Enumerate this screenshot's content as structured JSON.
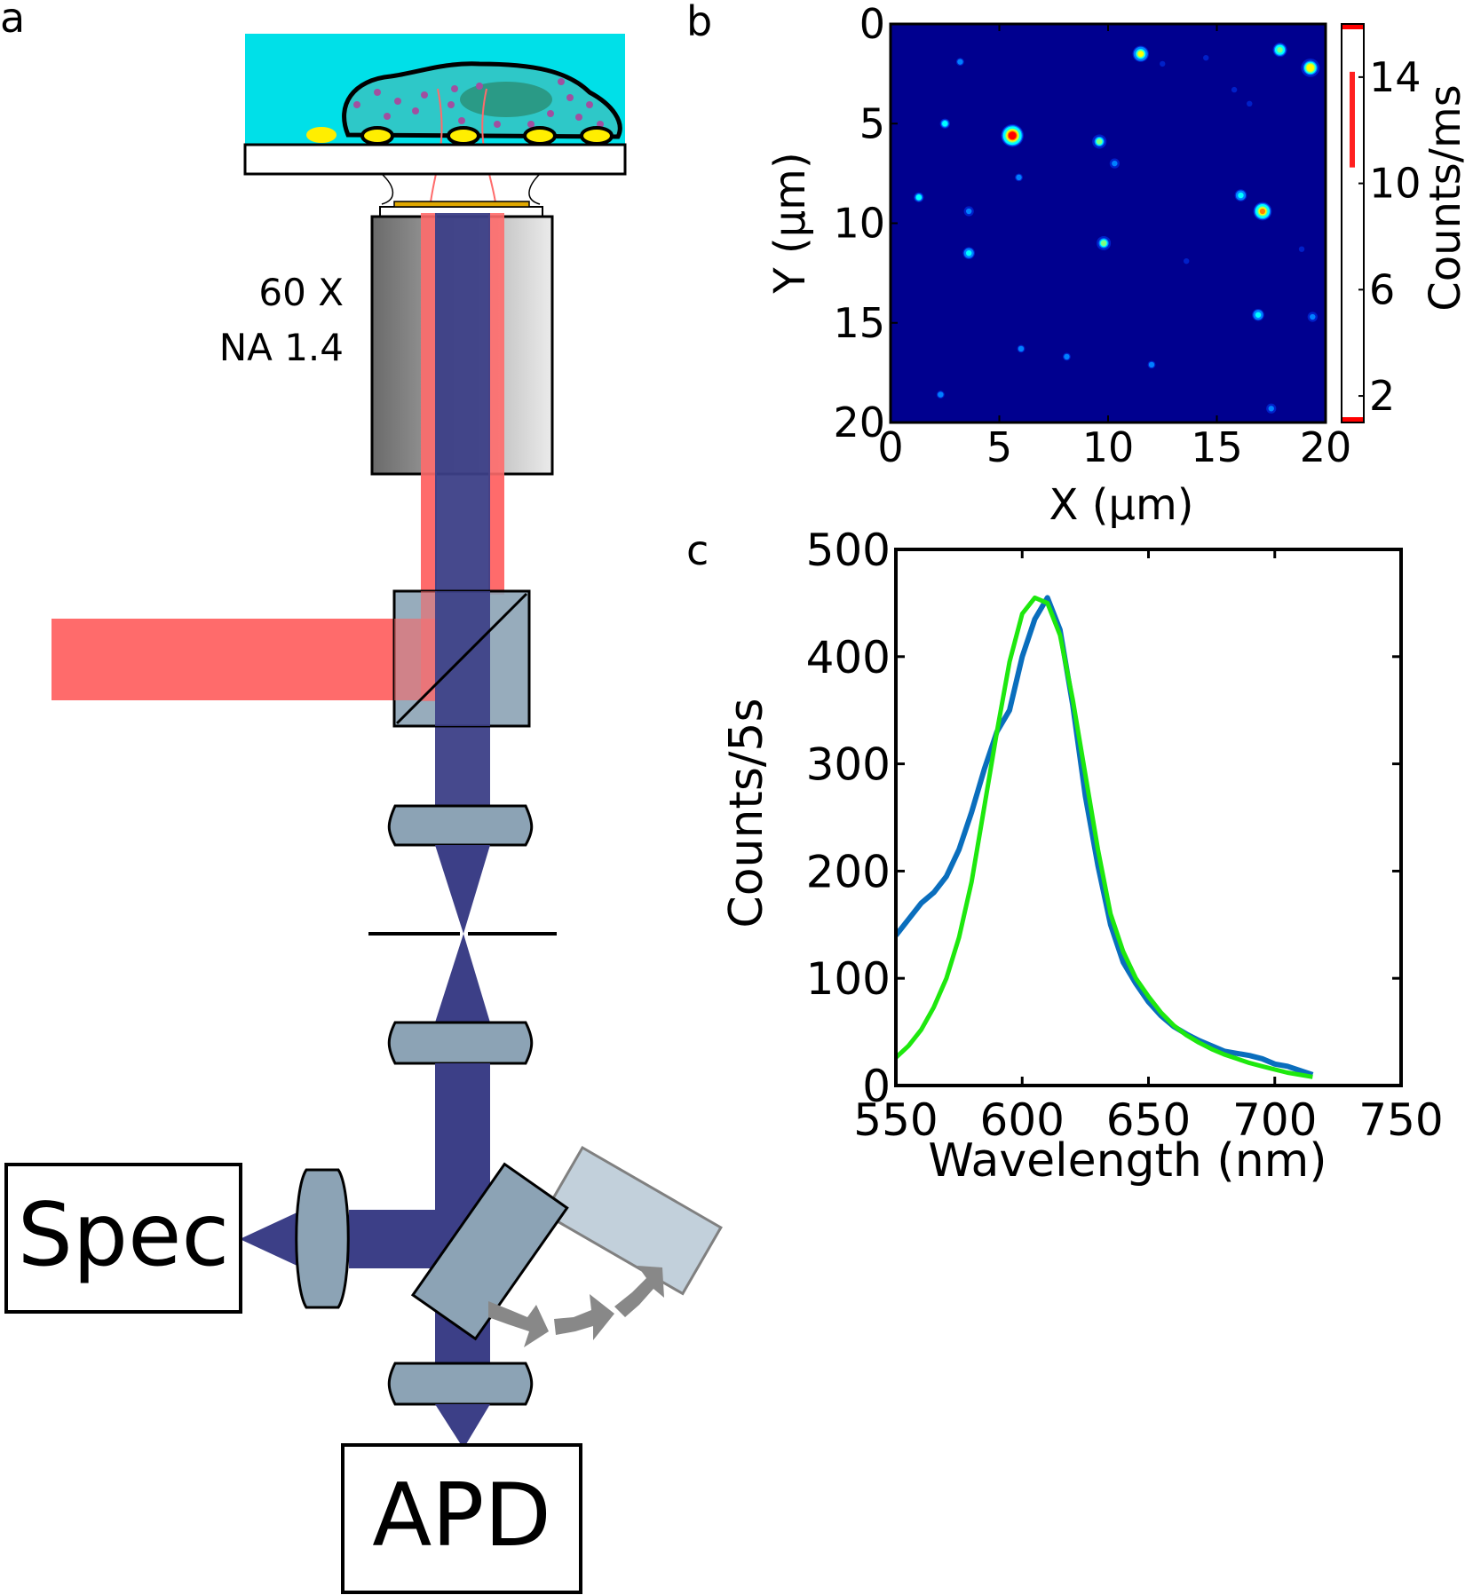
{
  "panel_labels": {
    "a": "a",
    "b": "b",
    "c": "c"
  },
  "setup": {
    "objective_mag": "60 X",
    "objective_na": "NA 1.4",
    "spec_label": "Spec",
    "apd_label": "APD",
    "colors": {
      "medium": "#00e0e8",
      "cell_fill": "#2ec8c8",
      "nucleus": "#2a9a86",
      "particle": "#ffee00",
      "laser": "#ff6b6b",
      "emission": "#3c3f87",
      "optic": "#8ca3b5",
      "objective_dark": "#707070",
      "objective_light": "#e6e6e6",
      "moving_mirror": "#c2d0db",
      "arrow": "#888888"
    }
  },
  "chart_data": [
    {
      "type": "heatmap",
      "xlabel": "X (µm)",
      "ylabel": "Y (µm)",
      "xlim": [
        0,
        20
      ],
      "ylim": [
        0,
        20
      ],
      "xticks": [
        0,
        5,
        10,
        15,
        20
      ],
      "yticks": [
        0,
        5,
        10,
        15,
        20
      ],
      "y_inverted": true,
      "colorbar": {
        "label": "Counts/ms",
        "ticks": [
          2,
          6,
          10,
          14
        ],
        "range": [
          1,
          16
        ]
      },
      "background_level": 1.5,
      "spots": [
        {
          "x": 11.5,
          "y": 1.5,
          "value": 10
        },
        {
          "x": 17.9,
          "y": 1.3,
          "value": 9
        },
        {
          "x": 19.3,
          "y": 2.2,
          "value": 11
        },
        {
          "x": 5.6,
          "y": 5.6,
          "value": 15
        },
        {
          "x": 9.6,
          "y": 5.9,
          "value": 8
        },
        {
          "x": 2.5,
          "y": 5.0,
          "value": 6
        },
        {
          "x": 1.3,
          "y": 8.7,
          "value": 6
        },
        {
          "x": 3.6,
          "y": 9.4,
          "value": 5
        },
        {
          "x": 16.1,
          "y": 8.6,
          "value": 7
        },
        {
          "x": 17.1,
          "y": 9.4,
          "value": 12
        },
        {
          "x": 10.3,
          "y": 7.0,
          "value": 5
        },
        {
          "x": 9.8,
          "y": 11.0,
          "value": 8
        },
        {
          "x": 3.6,
          "y": 11.5,
          "value": 7
        },
        {
          "x": 16.9,
          "y": 14.6,
          "value": 7
        },
        {
          "x": 19.4,
          "y": 14.7,
          "value": 5
        },
        {
          "x": 5.9,
          "y": 7.7,
          "value": 4
        },
        {
          "x": 12.0,
          "y": 17.1,
          "value": 4
        },
        {
          "x": 6.0,
          "y": 16.3,
          "value": 4
        },
        {
          "x": 8.1,
          "y": 16.7,
          "value": 4
        },
        {
          "x": 17.5,
          "y": 19.3,
          "value": 5
        },
        {
          "x": 2.3,
          "y": 18.6,
          "value": 4
        },
        {
          "x": 13.6,
          "y": 11.9,
          "value": 3
        },
        {
          "x": 3.2,
          "y": 1.9,
          "value": 4
        },
        {
          "x": 15.8,
          "y": 3.3,
          "value": 3
        },
        {
          "x": 12.5,
          "y": 2.0,
          "value": 3
        },
        {
          "x": 16.5,
          "y": 4.0,
          "value": 3
        },
        {
          "x": 14.5,
          "y": 1.7,
          "value": 3
        },
        {
          "x": 18.9,
          "y": 11.3,
          "value": 3
        }
      ],
      "colormap": [
        "#00008f",
        "#0020c8",
        "#0080ff",
        "#00ffff",
        "#80ff80",
        "#ffff00",
        "#ff8000",
        "#ff0000",
        "#800000"
      ]
    },
    {
      "type": "line",
      "xlabel": "Wavelength (nm)",
      "ylabel": "Counts/5s",
      "xlim": [
        550,
        750
      ],
      "ylim": [
        0,
        500
      ],
      "xticks": [
        550,
        600,
        650,
        700,
        750
      ],
      "yticks": [
        0,
        100,
        200,
        300,
        400,
        500
      ],
      "series": [
        {
          "color": "#0a6ebd",
          "x": [
            550,
            555,
            560,
            565,
            570,
            575,
            580,
            585,
            590,
            595,
            600,
            605,
            610,
            615,
            620,
            625,
            630,
            635,
            640,
            645,
            650,
            655,
            660,
            665,
            670,
            675,
            680,
            685,
            690,
            695,
            700,
            705,
            710,
            715
          ],
          "y": [
            140,
            155,
            170,
            180,
            195,
            220,
            255,
            295,
            330,
            350,
            400,
            435,
            455,
            425,
            355,
            270,
            205,
            150,
            115,
            95,
            78,
            65,
            55,
            48,
            42,
            37,
            32,
            30,
            28,
            25,
            20,
            18,
            14,
            10
          ]
        },
        {
          "color": "#1ee80e",
          "x": [
            550,
            555,
            560,
            565,
            570,
            575,
            580,
            585,
            590,
            595,
            600,
            605,
            610,
            615,
            620,
            625,
            630,
            635,
            640,
            645,
            650,
            655,
            660,
            665,
            670,
            675,
            680,
            685,
            690,
            695,
            700,
            705,
            710,
            715
          ],
          "y": [
            26,
            37,
            52,
            73,
            100,
            138,
            190,
            260,
            330,
            395,
            440,
            455,
            450,
            420,
            360,
            290,
            220,
            160,
            125,
            100,
            83,
            68,
            56,
            47,
            40,
            34,
            29,
            25,
            21,
            18,
            15,
            12,
            10,
            8
          ]
        }
      ]
    }
  ]
}
